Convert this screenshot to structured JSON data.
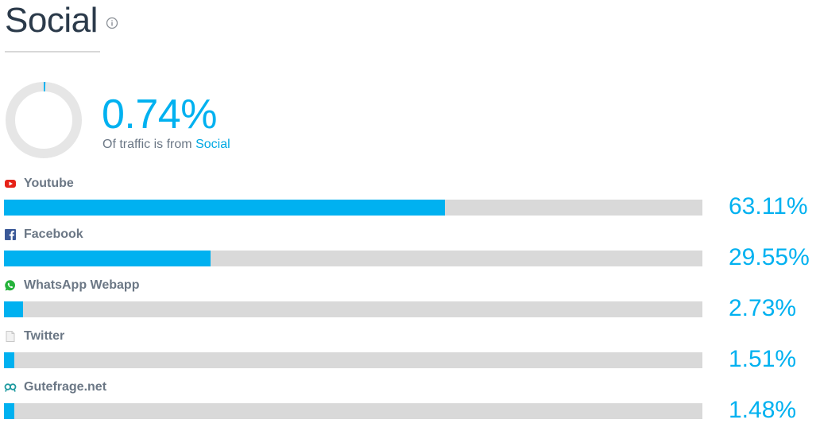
{
  "header": {
    "title": "Social",
    "info_icon": "info-circle-icon"
  },
  "summary": {
    "share_value": "0.74%",
    "share_fraction": 0.0074,
    "caption_prefix": "Of traffic is from",
    "caption_channel": "Social"
  },
  "colors": {
    "accent": "#00b1f0",
    "track": "#d9d9d9",
    "title": "#2b3a4a",
    "muted": "#6b7785"
  },
  "sources": [
    {
      "name": "Youtube",
      "value": "63.11%",
      "percent": 63.11,
      "icon": "youtube-icon"
    },
    {
      "name": "Facebook",
      "value": "29.55%",
      "percent": 29.55,
      "icon": "facebook-icon"
    },
    {
      "name": "WhatsApp Webapp",
      "value": "2.73%",
      "percent": 2.73,
      "icon": "whatsapp-icon"
    },
    {
      "name": "Twitter",
      "value": "1.51%",
      "percent": 1.51,
      "icon": "document-icon"
    },
    {
      "name": "Gutefrage.net",
      "value": "1.48%",
      "percent": 1.48,
      "icon": "gutefrage-icon"
    }
  ]
}
